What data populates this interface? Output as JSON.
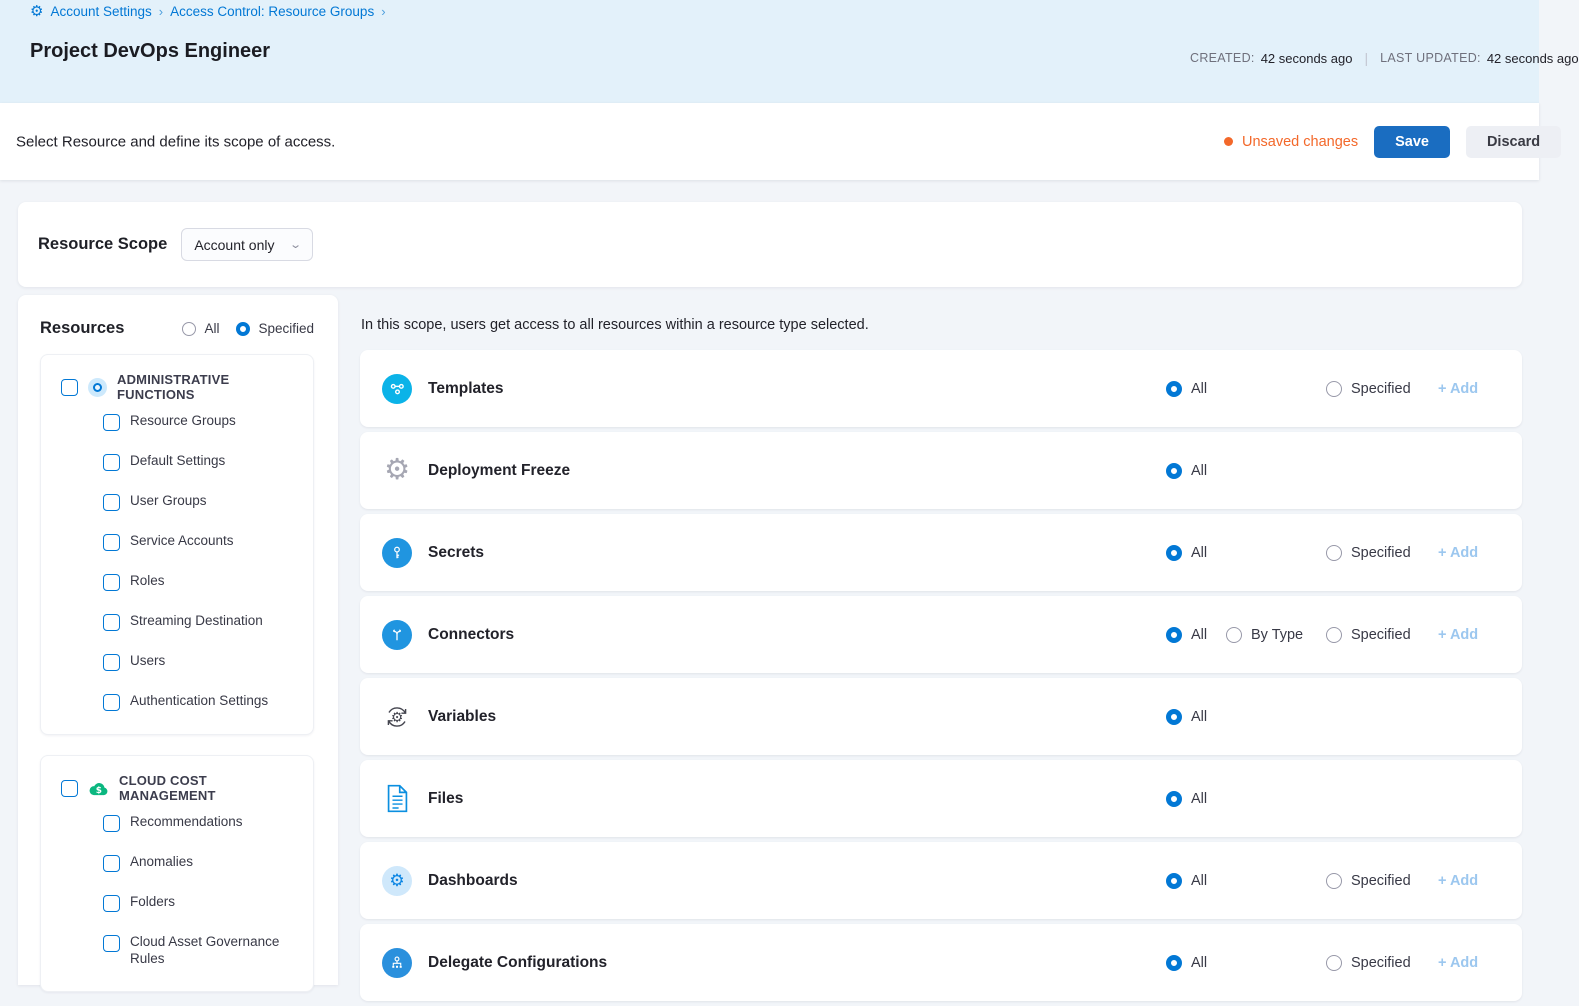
{
  "breadcrumb": {
    "separator": "›",
    "items": [
      {
        "label": "Account Settings"
      },
      {
        "label": "Access Control: Resource Groups"
      }
    ]
  },
  "header": {
    "title": "Project DevOps Engineer",
    "created_label": "CREATED:",
    "created_value": "42 seconds ago",
    "updated_label": "LAST UPDATED:",
    "updated_value": "42 seconds ago"
  },
  "toolbar": {
    "description": "Select Resource and define its scope of access.",
    "unsaved_label": "Unsaved changes",
    "save_label": "Save",
    "discard_label": "Discard"
  },
  "scope": {
    "label": "Resource Scope",
    "value": "Account only"
  },
  "resources": {
    "title": "Resources",
    "scope_options": [
      {
        "label": "All",
        "selected": false
      },
      {
        "label": "Specified",
        "selected": true
      }
    ],
    "groups": [
      {
        "name": "ADMINISTRATIVE FUNCTIONS",
        "icon": "admin-functions-icon",
        "checked": false,
        "items": [
          "Resource Groups",
          "Default Settings",
          "User Groups",
          "Service Accounts",
          "Roles",
          "Streaming Destination",
          "Users",
          "Authentication Settings"
        ]
      },
      {
        "name": "CLOUD COST MANAGEMENT",
        "icon": "cloud-cost-icon",
        "checked": false,
        "items": [
          "Recommendations",
          "Anomalies",
          "Folders",
          "Cloud Asset Governance Rules"
        ]
      }
    ]
  },
  "main": {
    "description": "In this scope, users get access to all resources within a resource type selected.",
    "add_label": "+ Add",
    "rows": [
      {
        "label": "Templates",
        "icon": "templates-icon",
        "options": [
          {
            "label": "All",
            "selected": true
          },
          {
            "label": "Specified",
            "selected": false
          }
        ],
        "has_add": true
      },
      {
        "label": "Deployment Freeze",
        "icon": "deployment-freeze-icon",
        "options": [
          {
            "label": "All",
            "selected": true
          }
        ],
        "has_add": false
      },
      {
        "label": "Secrets",
        "icon": "secrets-icon",
        "options": [
          {
            "label": "All",
            "selected": true
          },
          {
            "label": "Specified",
            "selected": false
          }
        ],
        "has_add": true
      },
      {
        "label": "Connectors",
        "icon": "connectors-icon",
        "options": [
          {
            "label": "All",
            "selected": true
          },
          {
            "label": "By Type",
            "selected": false
          },
          {
            "label": "Specified",
            "selected": false
          }
        ],
        "has_add": true
      },
      {
        "label": "Variables",
        "icon": "variables-icon",
        "options": [
          {
            "label": "All",
            "selected": true
          }
        ],
        "has_add": false
      },
      {
        "label": "Files",
        "icon": "files-icon",
        "options": [
          {
            "label": "All",
            "selected": true
          }
        ],
        "has_add": false
      },
      {
        "label": "Dashboards",
        "icon": "dashboards-icon",
        "options": [
          {
            "label": "All",
            "selected": true
          },
          {
            "label": "Specified",
            "selected": false
          }
        ],
        "has_add": true
      },
      {
        "label": "Delegate Configurations",
        "icon": "delegate-configurations-icon",
        "options": [
          {
            "label": "All",
            "selected": true
          },
          {
            "label": "Specified",
            "selected": false
          }
        ],
        "has_add": true
      }
    ]
  },
  "colors": {
    "accent": "#0278d5",
    "save_button": "#1a6dc1",
    "unsaved_orange": "#f3682a",
    "header_bg": "#e3f1fa",
    "add_disabled": "#9cc7ef",
    "cloud_cost_green": "#0bb780",
    "templates_cyan": "#0bb3e8"
  }
}
